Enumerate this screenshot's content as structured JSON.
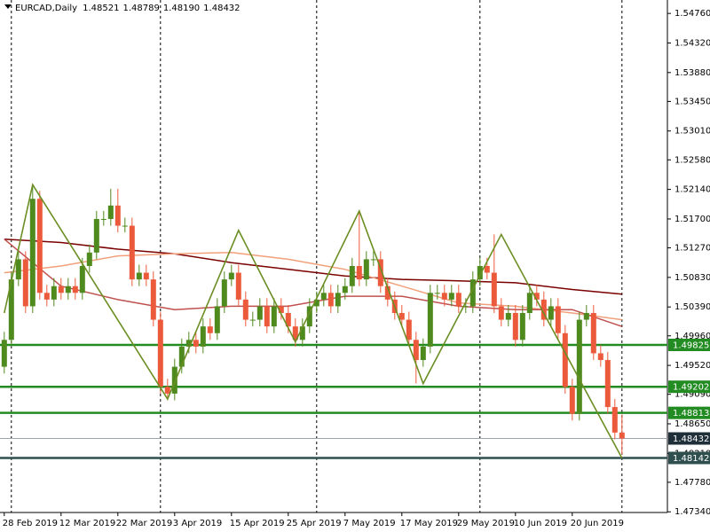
{
  "chart_data": {
    "type": "candlestick",
    "title": "EURCAD,Daily",
    "quote": [
      {
        "value": 1.48521,
        "label": "1.48521"
      },
      {
        "value": 1.48789,
        "label": "1.48789"
      },
      {
        "value": 1.4819,
        "label": "1.48190"
      },
      {
        "value": 1.48432,
        "label": "1.48432"
      }
    ],
    "up_color": "#4f8a1e",
    "down_color": "#ec5a3c",
    "xlim": [
      -0.6,
      93.4
    ],
    "ylim": [
      1.4733,
      1.5496
    ],
    "xticks": [
      {
        "value": 0,
        "label": "28 Feb 2019"
      },
      {
        "value": 8,
        "label": "12 Mar 2019"
      },
      {
        "value": 16,
        "label": "22 Mar 2019"
      },
      {
        "value": 24,
        "label": "3 Apr 2019"
      },
      {
        "value": 32,
        "label": "15 Apr 2019"
      },
      {
        "value": 40,
        "label": "25 Apr 2019"
      },
      {
        "value": 48,
        "label": "7 May 2019"
      },
      {
        "value": 56,
        "label": "17 May 2019"
      },
      {
        "value": 64,
        "label": "29 May 2019"
      },
      {
        "value": 72,
        "label": "10 Jun 2019"
      },
      {
        "value": 80,
        "label": "20 Jun 2019"
      }
    ],
    "yticks": [
      {
        "value": 1.5476,
        "label": "1.54760"
      },
      {
        "value": 1.5432,
        "label": "1.54320"
      },
      {
        "value": 1.5388,
        "label": "1.53880"
      },
      {
        "value": 1.5345,
        "label": "1.53450"
      },
      {
        "value": 1.5301,
        "label": "1.53010"
      },
      {
        "value": 1.5258,
        "label": "1.52580"
      },
      {
        "value": 1.5214,
        "label": "1.52140"
      },
      {
        "value": 1.517,
        "label": "1.51700"
      },
      {
        "value": 1.5127,
        "label": "1.51270"
      },
      {
        "value": 1.5083,
        "label": "1.50830"
      },
      {
        "value": 1.5039,
        "label": "1.50390"
      },
      {
        "value": 1.4996,
        "label": "1.49960"
      },
      {
        "value": 1.4952,
        "label": "1.49520"
      },
      {
        "value": 1.4909,
        "label": "1.49090"
      },
      {
        "value": 1.4865,
        "label": "1.48650"
      },
      {
        "value": 1.4821,
        "label": "1.48210"
      },
      {
        "value": 1.4778,
        "label": "1.47780"
      },
      {
        "value": 1.4734,
        "label": "1.47340"
      }
    ],
    "separators": [
      1,
      22,
      44,
      67,
      87
    ],
    "open": [
      1.495,
      1.499,
      1.508,
      1.511,
      1.504,
      1.52,
      1.506,
      1.505,
      1.507,
      1.506,
      1.507,
      1.506,
      1.51,
      1.512,
      1.517,
      1.517,
      1.519,
      1.516,
      1.516,
      1.508,
      1.509,
      1.508,
      1.502,
      1.492,
      1.491,
      1.495,
      1.498,
      1.499,
      1.498,
      1.501,
      1.5,
      1.504,
      1.508,
      1.509,
      1.505,
      1.502,
      1.502,
      1.504,
      1.501,
      1.504,
      1.503,
      1.501,
      1.499,
      1.501,
      1.504,
      1.505,
      1.506,
      1.504,
      1.506,
      1.507,
      1.51,
      1.508,
      1.511,
      1.511,
      1.507,
      1.505,
      1.503,
      1.502,
      1.499,
      1.496,
      1.498,
      1.506,
      1.506,
      1.505,
      1.506,
      1.504,
      1.504,
      1.508,
      1.51,
      1.509,
      1.504,
      1.502,
      1.503,
      1.499,
      1.503,
      1.506,
      1.505,
      1.502,
      1.504,
      1.5,
      1.492,
      1.488,
      1.502,
      1.503,
      1.497,
      1.496,
      1.489,
      1.48521
    ],
    "high": [
      1.5002,
      1.5092,
      1.5122,
      1.5122,
      1.5221,
      1.5212,
      1.5072,
      1.5082,
      1.5082,
      1.5082,
      1.5082,
      1.5112,
      1.5132,
      1.5182,
      1.5182,
      1.5215,
      1.5215,
      1.5172,
      1.5172,
      1.5102,
      1.5102,
      1.5092,
      1.5032,
      1.4932,
      1.4962,
      1.4992,
      1.5002,
      1.5002,
      1.5022,
      1.5022,
      1.5052,
      1.5092,
      1.5102,
      1.5102,
      1.5062,
      1.5032,
      1.5052,
      1.5052,
      1.5052,
      1.5052,
      1.5042,
      1.5022,
      1.5022,
      1.5052,
      1.5062,
      1.5072,
      1.5072,
      1.5072,
      1.5082,
      1.5112,
      1.5182,
      1.5122,
      1.5122,
      1.5122,
      1.5082,
      1.5062,
      1.5042,
      1.5032,
      1.5002,
      1.4992,
      1.5072,
      1.5072,
      1.5072,
      1.5072,
      1.5072,
      1.5052,
      1.5092,
      1.5112,
      1.5112,
      1.5147,
      1.5052,
      1.5042,
      1.5042,
      1.5042,
      1.5072,
      1.5072,
      1.5062,
      1.5052,
      1.5052,
      1.5012,
      1.4932,
      1.5032,
      1.5042,
      1.5042,
      1.4982,
      1.4972,
      1.4902,
      1.48789
    ],
    "low": [
      1.494,
      1.498,
      1.507,
      1.503,
      1.503,
      1.505,
      1.504,
      1.504,
      1.505,
      1.505,
      1.505,
      1.505,
      1.509,
      1.511,
      1.516,
      1.516,
      1.515,
      1.515,
      1.507,
      1.507,
      1.507,
      1.501,
      1.491,
      1.49,
      1.49,
      1.494,
      1.497,
      1.497,
      1.497,
      1.499,
      1.499,
      1.503,
      1.507,
      1.504,
      1.501,
      1.501,
      1.501,
      1.5,
      1.5,
      1.502,
      1.5,
      1.498,
      1.498,
      1.5,
      1.503,
      1.504,
      1.503,
      1.503,
      1.505,
      1.506,
      1.507,
      1.507,
      1.51,
      1.506,
      1.504,
      1.502,
      1.501,
      1.498,
      1.4925,
      1.495,
      1.497,
      1.505,
      1.504,
      1.504,
      1.503,
      1.503,
      1.503,
      1.507,
      1.508,
      1.503,
      1.501,
      1.501,
      1.498,
      1.498,
      1.502,
      1.504,
      1.501,
      1.501,
      1.499,
      1.491,
      1.487,
      1.487,
      1.501,
      1.496,
      1.495,
      1.488,
      1.4842,
      1.4819
    ],
    "close": [
      1.499,
      1.508,
      1.511,
      1.504,
      1.52,
      1.506,
      1.505,
      1.507,
      1.506,
      1.507,
      1.506,
      1.51,
      1.512,
      1.517,
      1.517,
      1.519,
      1.516,
      1.516,
      1.508,
      1.509,
      1.508,
      1.502,
      1.492,
      1.491,
      1.495,
      1.498,
      1.499,
      1.498,
      1.501,
      1.5,
      1.504,
      1.508,
      1.509,
      1.505,
      1.502,
      1.502,
      1.504,
      1.501,
      1.504,
      1.503,
      1.501,
      1.499,
      1.501,
      1.504,
      1.505,
      1.506,
      1.504,
      1.506,
      1.507,
      1.51,
      1.508,
      1.511,
      1.511,
      1.507,
      1.505,
      1.503,
      1.502,
      1.499,
      1.496,
      1.498,
      1.506,
      1.506,
      1.505,
      1.506,
      1.504,
      1.504,
      1.508,
      1.51,
      1.509,
      1.504,
      1.502,
      1.503,
      1.499,
      1.503,
      1.506,
      1.505,
      1.502,
      1.504,
      1.5,
      1.492,
      1.488,
      1.502,
      1.503,
      1.497,
      1.496,
      1.489,
      1.4852,
      1.48432
    ],
    "series": [
      {
        "color": "#7a0000",
        "x": [
          0,
          8,
          16,
          24,
          32,
          40,
          48,
          56,
          64,
          72,
          80,
          87
        ],
        "values": [
          1.514,
          1.5135,
          1.5125,
          1.5118,
          1.5105,
          1.5095,
          1.5085,
          1.508,
          1.5078,
          1.5075,
          1.5065,
          1.5058
        ]
      },
      {
        "color": "#f2a07a",
        "x": [
          0,
          8,
          16,
          24,
          32,
          40,
          48,
          56,
          64,
          72,
          80,
          87
        ],
        "values": [
          1.509,
          1.51,
          1.5115,
          1.5118,
          1.512,
          1.511,
          1.5095,
          1.507,
          1.5045,
          1.504,
          1.503,
          1.502
        ]
      },
      {
        "color": "#c0504d",
        "x": [
          0,
          8,
          16,
          24,
          32,
          40,
          48,
          56,
          64,
          72,
          80,
          87
        ],
        "values": [
          1.514,
          1.507,
          1.505,
          1.5035,
          1.504,
          1.504,
          1.5055,
          1.5055,
          1.504,
          1.5035,
          1.5035,
          1.501
        ]
      }
    ],
    "zigzag": {
      "color": "#6b8e23",
      "x": [
        0,
        4,
        23,
        33,
        41,
        50,
        59,
        70,
        87
      ],
      "values": [
        1.503,
        1.5221,
        1.4902,
        1.5153,
        1.4987,
        1.5182,
        1.4925,
        1.5147,
        1.4814
      ]
    },
    "levels": [
      {
        "value": 1.49825,
        "label": "1.49825",
        "color": "#228b22"
      },
      {
        "value": 1.49202,
        "label": "1.49202",
        "color": "#228b22"
      },
      {
        "value": 1.48813,
        "label": "1.48813",
        "color": "#228b22"
      },
      {
        "value": 1.48432,
        "label": "1.48432",
        "color": "#1f2f3a"
      },
      {
        "value": 1.48142,
        "label": "1.48142",
        "color": "#2f4f4f"
      }
    ]
  }
}
